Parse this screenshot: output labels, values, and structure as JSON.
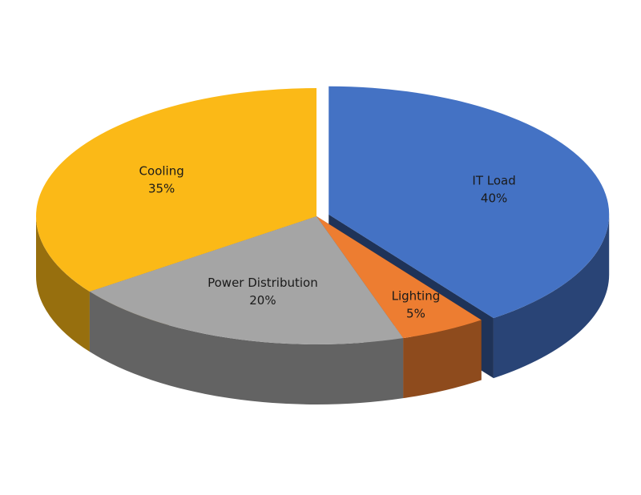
{
  "chart_data": {
    "type": "pie3d",
    "categories": [
      "IT Load",
      "Lighting",
      "Power Distribution",
      "Cooling"
    ],
    "values": [
      40,
      5,
      20,
      35
    ],
    "value_labels": [
      "40%",
      "5%",
      "20%",
      "35%"
    ],
    "colors": [
      "#4472c4",
      "#ed7d31",
      "#a5a5a5",
      "#fbb917"
    ],
    "exploded": [
      true,
      false,
      false,
      false
    ]
  }
}
